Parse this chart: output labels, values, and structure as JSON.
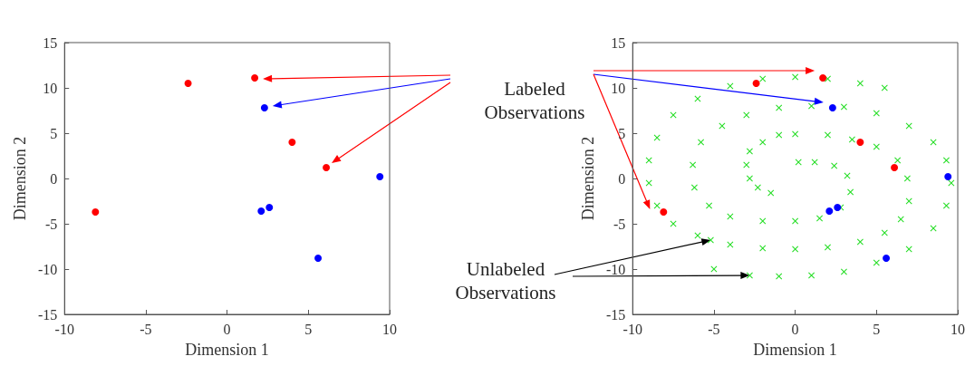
{
  "chart_data": [
    {
      "type": "scatter",
      "xlabel": "Dimension 1",
      "ylabel": "Dimension 2",
      "xlim": [
        -10,
        10
      ],
      "ylim": [
        -15,
        15
      ],
      "xticks": [
        -10,
        -5,
        0,
        5,
        10
      ],
      "yticks": [
        -15,
        -10,
        -5,
        0,
        5,
        10,
        15
      ],
      "marker": "circle",
      "annotations": [
        "Labeled Observations"
      ],
      "series": [
        {
          "color": "#ff0000",
          "x": [
            1.7,
            -2.4,
            4,
            6.1,
            -8.1
          ],
          "values": [
            11.1,
            10.5,
            4,
            1.2,
            -3.7
          ]
        },
        {
          "color": "#0000ff",
          "x": [
            2.3,
            9.4,
            2.1,
            2.6,
            5.6
          ],
          "values": [
            7.8,
            0.2,
            -3.6,
            -3.2,
            -8.8
          ]
        }
      ]
    },
    {
      "type": "scatter",
      "xlabel": "Dimension 1",
      "ylabel": "Dimension 2",
      "xlim": [
        -10,
        10
      ],
      "ylim": [
        -15,
        15
      ],
      "xticks": [
        -10,
        -5,
        0,
        5,
        10
      ],
      "yticks": [
        -15,
        -10,
        -5,
        0,
        5,
        10,
        15
      ],
      "marker": "circle",
      "annotations": [
        "Unlabeled Observations"
      ],
      "series": [
        {
          "color": "#22dd22",
          "marker": "cross",
          "x": [
            5.5,
            4,
            2,
            0,
            -2,
            -4,
            -6,
            -7.5,
            -8.5,
            -9,
            -9,
            -8.5,
            -7.5,
            -6,
            -5.2,
            -4,
            -2,
            0,
            2,
            4,
            5.5,
            6.5,
            7,
            6.9,
            6.3,
            5,
            3.5,
            2,
            0,
            -1,
            -2,
            -2.8,
            -3,
            -2.8,
            -2.3,
            -1.5,
            -5,
            -2.8,
            -1,
            1,
            3,
            5,
            7,
            8.5,
            9.3,
            9.6,
            9.3,
            8.5,
            7,
            5,
            3,
            1,
            -1,
            -3,
            -4.5,
            -5.8,
            -6.3,
            -6.2,
            -5.3,
            -4,
            -2,
            0,
            1.5,
            2.8,
            3.4,
            3.2,
            2.4,
            1.2,
            0.2
          ],
          "values": [
            10,
            10.5,
            11,
            11.2,
            11,
            10.2,
            8.8,
            7,
            4.5,
            2,
            -0.5,
            -3,
            -5,
            -6.3,
            -6.8,
            -7.3,
            -7.7,
            -7.8,
            -7.6,
            -7,
            -6,
            -4.5,
            -2.5,
            0,
            2,
            3.5,
            4.3,
            4.8,
            4.9,
            4.8,
            4,
            3,
            1.5,
            0,
            -1,
            -1.6,
            -10,
            -10.7,
            -10.8,
            -10.7,
            -10.3,
            -9.3,
            -7.8,
            -5.5,
            -3,
            -0.5,
            2,
            4,
            5.8,
            7.2,
            7.9,
            8,
            7.8,
            7,
            5.8,
            4,
            1.5,
            -1,
            -3,
            -4.2,
            -4.7,
            -4.7,
            -4.4,
            -3.2,
            -1.5,
            0.3,
            1.4,
            1.8,
            1.8
          ]
        },
        {
          "color": "#ff0000",
          "x": [
            1.7,
            -2.4,
            4,
            6.1,
            -8.1
          ],
          "values": [
            11.1,
            10.5,
            4,
            1.2,
            -3.7
          ]
        },
        {
          "color": "#0000ff",
          "x": [
            2.3,
            9.4,
            2.1,
            2.6,
            5.6
          ],
          "values": [
            7.8,
            0.2,
            -3.6,
            -3.2,
            -8.8
          ]
        }
      ]
    }
  ]
}
